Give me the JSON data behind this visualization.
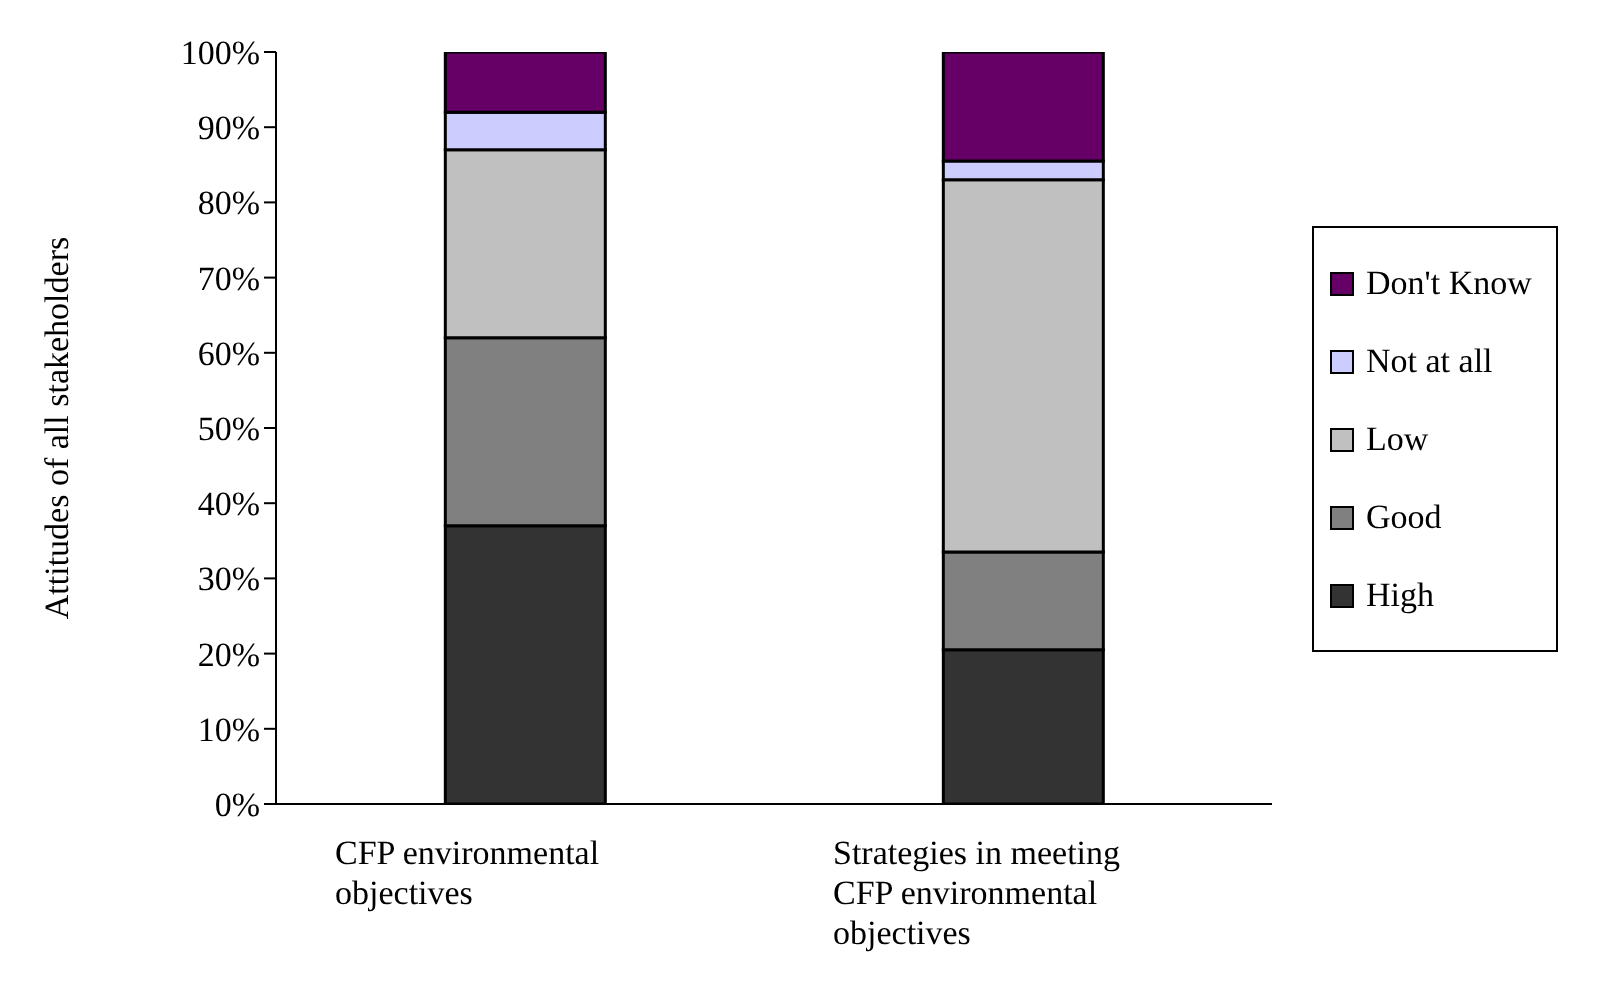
{
  "chart_data": {
    "type": "bar",
    "stacked": true,
    "categories": [
      "CFP environmental objectives",
      "Strategies in meeting CFP environmental objectives"
    ],
    "ylabel": "Attitudes of all stakeholders",
    "series": [
      {
        "name": "High",
        "color": "#333333",
        "values": [
          37,
          20.5
        ]
      },
      {
        "name": "Good",
        "color": "#808080",
        "values": [
          25,
          13
        ]
      },
      {
        "name": "Low",
        "color": "#c0c0c0",
        "values": [
          25,
          49.5
        ]
      },
      {
        "name": "Not at all",
        "color": "#ccccff",
        "values": [
          5,
          2.5
        ]
      },
      {
        "name": "Don't Know",
        "color": "#660066",
        "values": [
          8,
          14.5
        ]
      }
    ],
    "ylim": [
      0,
      100
    ],
    "yticks": [
      {
        "value": 0,
        "label": "0%"
      },
      {
        "value": 10,
        "label": "10%"
      },
      {
        "value": 20,
        "label": "20%"
      },
      {
        "value": 30,
        "label": "30%"
      },
      {
        "value": 40,
        "label": "40%"
      },
      {
        "value": 50,
        "label": "50%"
      },
      {
        "value": 60,
        "label": "60%"
      },
      {
        "value": 70,
        "label": "70%"
      },
      {
        "value": 80,
        "label": "80%"
      },
      {
        "value": 90,
        "label": "90%"
      },
      {
        "value": 100,
        "label": "100%"
      }
    ],
    "grid": false,
    "legend": "right"
  }
}
